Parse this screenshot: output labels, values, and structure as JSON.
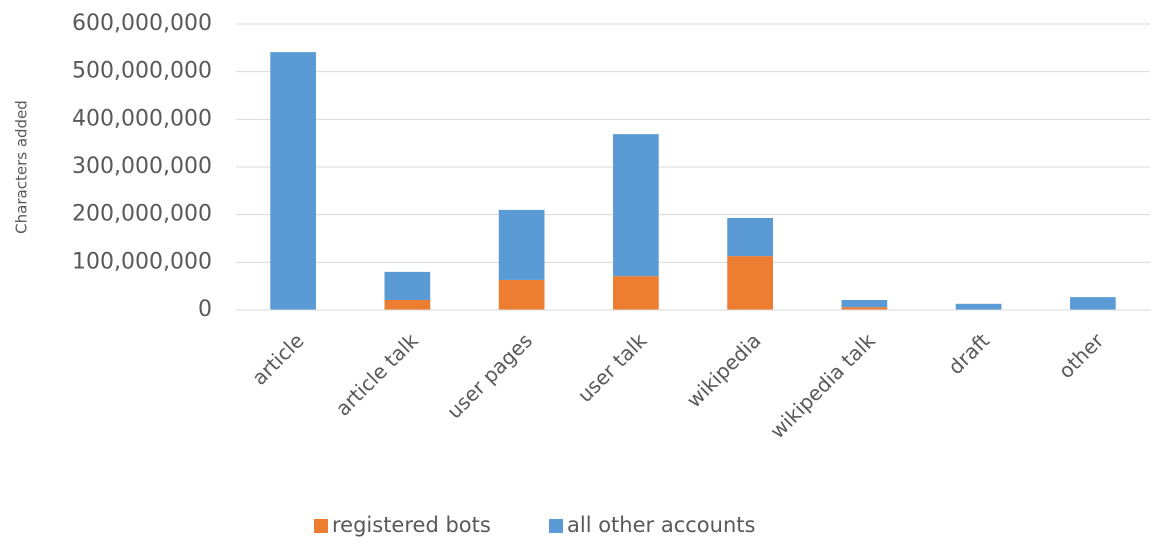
{
  "chart_data": {
    "type": "stacked_bar",
    "y_label": "Characters added",
    "categories": [
      "article",
      "article talk",
      "user pages",
      "user talk",
      "wikipedia",
      "wikipedia talk",
      "draft",
      "other"
    ],
    "series": [
      {
        "name": "registered bots",
        "color": "#ed7d31",
        "values": [
          0,
          21000000,
          63000000,
          71000000,
          113000000,
          6000000,
          0,
          0
        ]
      },
      {
        "name": "all other accounts",
        "color": "#5b9bd5",
        "values": [
          541000000,
          59000000,
          147000000,
          298000000,
          80000000,
          15000000,
          13000000,
          27000000
        ]
      }
    ],
    "ylim": [
      0,
      600000000
    ],
    "yticks": [
      0,
      {
        "value": 100000000,
        "label": "100,000,000"
      },
      {
        "value": 200000000,
        "label": "200,000,000"
      },
      {
        "value": 300000000,
        "label": "300,000,000"
      },
      {
        "value": 400000000,
        "label": "400,000,000"
      },
      {
        "value": 500000000,
        "label": "500,000,000"
      },
      {
        "value": 600000000,
        "label": "600,000,000"
      }
    ],
    "grid": true,
    "legend": "bottom"
  }
}
